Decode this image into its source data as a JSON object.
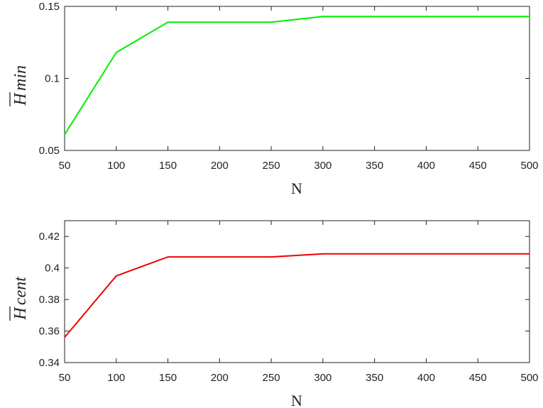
{
  "chart_data": [
    {
      "type": "line",
      "xlabel": "N",
      "ylabel": "H̅min",
      "ylabel_main": "H",
      "ylabel_sub": "min",
      "x": [
        50,
        100,
        150,
        200,
        250,
        300,
        350,
        400,
        450,
        500
      ],
      "series": [
        {
          "color": "#00ee00",
          "values": [
            0.061,
            0.118,
            0.139,
            0.139,
            0.139,
            0.143,
            0.143,
            0.143,
            0.143,
            0.143
          ]
        }
      ],
      "xlim": [
        50,
        500
      ],
      "ylim": [
        0.05,
        0.15
      ],
      "xticks": [
        "50",
        "100",
        "150",
        "200",
        "250",
        "300",
        "350",
        "400",
        "450",
        "500"
      ],
      "yticks": [
        {
          "value": 0.05,
          "label": "0.05"
        },
        {
          "value": 0.1,
          "label": "0.1"
        },
        {
          "value": 0.15,
          "label": "0.15"
        }
      ],
      "grid": false
    },
    {
      "type": "line",
      "xlabel": "N",
      "ylabel": "H̅cent",
      "ylabel_main": "H",
      "ylabel_sub": "cent",
      "x": [
        50,
        100,
        150,
        200,
        250,
        300,
        350,
        400,
        450,
        500
      ],
      "series": [
        {
          "color": "#ee0000",
          "values": [
            0.356,
            0.395,
            0.407,
            0.407,
            0.407,
            0.409,
            0.409,
            0.409,
            0.409,
            0.409
          ]
        }
      ],
      "xlim": [
        50,
        500
      ],
      "ylim": [
        0.34,
        0.43
      ],
      "xticks": [
        "50",
        "100",
        "150",
        "200",
        "250",
        "300",
        "350",
        "400",
        "450",
        "500"
      ],
      "yticks": [
        {
          "value": 0.34,
          "label": "0.34"
        },
        {
          "value": 0.36,
          "label": "0.36"
        },
        {
          "value": 0.38,
          "label": "0.38"
        },
        {
          "value": 0.4,
          "label": "0.4"
        },
        {
          "value": 0.42,
          "label": "0.42"
        }
      ],
      "grid": false
    }
  ]
}
